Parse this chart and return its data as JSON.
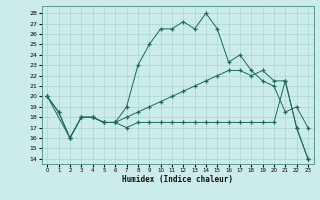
{
  "xlabel": "Humidex (Indice chaleur)",
  "bg_color": "#ccecea",
  "grid_color": "#a8d5d2",
  "line_color": "#1a6b5a",
  "xlim": [
    -0.5,
    23.5
  ],
  "ylim": [
    13.5,
    28.7
  ],
  "xticks": [
    0,
    1,
    2,
    3,
    4,
    5,
    6,
    7,
    8,
    9,
    10,
    11,
    12,
    13,
    14,
    15,
    16,
    17,
    18,
    19,
    20,
    21,
    22,
    23
  ],
  "yticks": [
    14,
    15,
    16,
    17,
    18,
    19,
    20,
    21,
    22,
    23,
    24,
    25,
    26,
    27,
    28
  ],
  "curve1_x": [
    0,
    1,
    2,
    3,
    4,
    5,
    6,
    7,
    8,
    9,
    10,
    11,
    12,
    13,
    14,
    15,
    16,
    17,
    18,
    19,
    20,
    21,
    22,
    23
  ],
  "curve1_y": [
    20.0,
    18.5,
    16.0,
    18.0,
    18.0,
    17.5,
    17.5,
    19.0,
    23.0,
    25.0,
    26.5,
    26.5,
    27.2,
    26.5,
    28.0,
    26.5,
    23.3,
    24.0,
    22.5,
    21.5,
    21.0,
    18.5,
    19.0,
    17.0
  ],
  "curve2_x": [
    0,
    1,
    2,
    3,
    4,
    5,
    6,
    7,
    8,
    9,
    10,
    11,
    12,
    13,
    14,
    15,
    16,
    17,
    18,
    19,
    20,
    21,
    22,
    23
  ],
  "curve2_y": [
    20.0,
    18.5,
    16.0,
    18.0,
    18.0,
    17.5,
    17.5,
    17.0,
    17.5,
    17.5,
    17.5,
    17.5,
    17.5,
    17.5,
    17.5,
    17.5,
    17.5,
    17.5,
    17.5,
    17.5,
    17.5,
    21.5,
    17.0,
    14.0
  ],
  "curve3_x": [
    0,
    2,
    3,
    4,
    5,
    6,
    7,
    8,
    9,
    10,
    11,
    12,
    13,
    14,
    15,
    16,
    17,
    18,
    19,
    20,
    21,
    22,
    23
  ],
  "curve3_y": [
    20.0,
    16.0,
    18.0,
    18.0,
    17.5,
    17.5,
    18.0,
    18.5,
    19.0,
    19.5,
    20.0,
    20.5,
    21.0,
    21.5,
    22.0,
    22.5,
    22.5,
    22.0,
    22.5,
    21.5,
    21.5,
    17.0,
    14.0
  ]
}
